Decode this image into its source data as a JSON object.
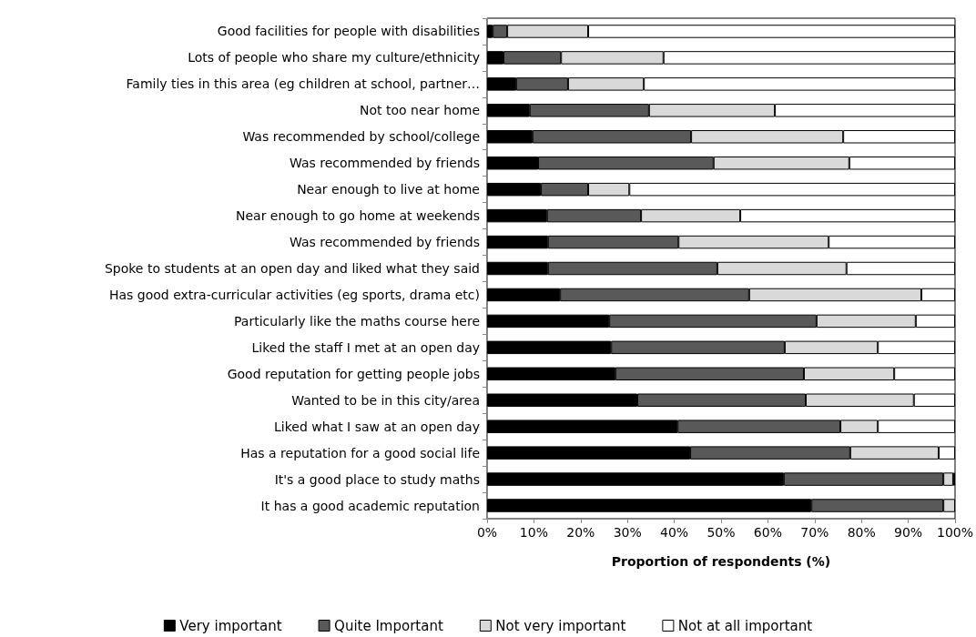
{
  "chart_data": {
    "type": "bar",
    "orientation": "horizontal",
    "stacked": true,
    "xlabel": "Proportion of respondents (%)",
    "categories": [
      "Good facilities for people with disabilities",
      "Lots of people who share my culture/ethnicity",
      "Family ties in this area (eg children at school, partner…",
      "Not too near home",
      "Was recommended by school/college",
      "Was recommended by friends",
      "Near enough to live at home",
      "Near enough to go home at weekends",
      "Was recommended by friends",
      "Spoke to students at an open day and liked what they said",
      "Has good extra-curricular activities (eg sports, drama etc)",
      "Particularly like the maths course here",
      "Liked the staff I met at an open day",
      "Good reputation for getting people jobs",
      "Wanted to be in this city/area",
      "Liked what I saw at an open day",
      "Has a reputation for a good social life",
      "It's a good place to study maths",
      "It has a good academic reputation"
    ],
    "series": [
      {
        "name": "Very important",
        "color": "#000000",
        "values": [
          1.2,
          3.5,
          6.2,
          9.1,
          9.7,
          10.9,
          11.5,
          12.8,
          13,
          13,
          15.6,
          26.1,
          26.5,
          27.4,
          32.1,
          40.7,
          43.4,
          63.4,
          69.3
        ]
      },
      {
        "name": "Quite Important",
        "color": "#595959",
        "values": [
          3.1,
          12.3,
          11.1,
          25.5,
          33.9,
          37.5,
          10.1,
          20.1,
          27.9,
          36.2,
          40.4,
          44.3,
          37.1,
          40.3,
          36,
          34.8,
          34.2,
          34.1,
          28.2
        ]
      },
      {
        "name": "Not very important",
        "color": "#d9d9d9",
        "values": [
          17.3,
          21.9,
          16.2,
          26.9,
          32.5,
          29,
          8.8,
          21.2,
          32.1,
          27.6,
          36.8,
          21.2,
          19.9,
          19.3,
          23.1,
          8,
          18.9,
          2.1,
          2.5
        ]
      },
      {
        "name": "Not at all important",
        "color": "#ffffff",
        "values": [
          78.4,
          62.3,
          66.5,
          38.5,
          23.9,
          22.6,
          69.6,
          45.9,
          27,
          23.2,
          7.2,
          8.4,
          16.5,
          13,
          8.8,
          16.5,
          3.5,
          0.4,
          0
        ]
      }
    ],
    "xlim": [
      0,
      100
    ],
    "xticks": [
      {
        "value": 0,
        "label": "0%"
      },
      {
        "value": 10,
        "label": "10%"
      },
      {
        "value": 20,
        "label": "20%"
      },
      {
        "value": 30,
        "label": "30%"
      },
      {
        "value": 40,
        "label": "40%"
      },
      {
        "value": 50,
        "label": "50%"
      },
      {
        "value": 60,
        "label": "60%"
      },
      {
        "value": 70,
        "label": "70%"
      },
      {
        "value": 80,
        "label": "80%"
      },
      {
        "value": 90,
        "label": "90%"
      },
      {
        "value": 100,
        "label": "100%"
      }
    ],
    "grid": false,
    "legend": "bottom"
  }
}
